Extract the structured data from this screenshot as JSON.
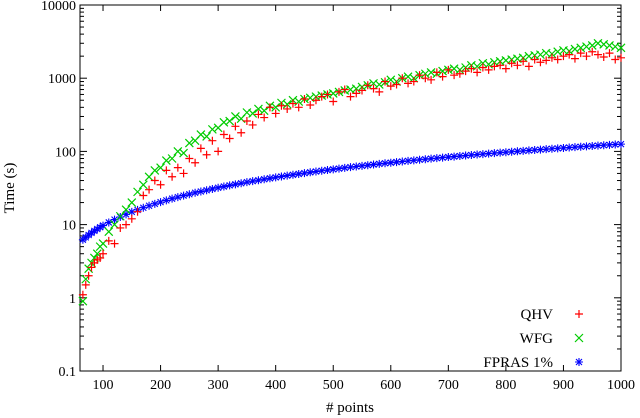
{
  "chart_data": {
    "type": "scatter",
    "xlabel": "# points",
    "ylabel": "Time (s)",
    "xlim": [
      60,
      1000
    ],
    "ylim": [
      0.1,
      10000
    ],
    "yscale": "log",
    "xticks": [
      100,
      200,
      300,
      400,
      500,
      600,
      700,
      800,
      900,
      1000
    ],
    "xtick_labels": [
      "100",
      "200",
      "300",
      "400",
      "500",
      "600",
      "700",
      "800",
      "900",
      "1000"
    ],
    "yticks": [
      0.1,
      1,
      10,
      100,
      1000,
      10000
    ],
    "ytick_labels": [
      "0.1",
      "1",
      "10",
      "100",
      "1000",
      "10000"
    ],
    "grid": false,
    "legend_position": "bottom-right",
    "series": [
      {
        "name": "QHV",
        "marker": "+",
        "color": "#ff0000",
        "x": [
          65,
          70,
          75,
          80,
          85,
          90,
          95,
          100,
          110,
          120,
          130,
          140,
          150,
          160,
          170,
          180,
          190,
          200,
          210,
          220,
          230,
          240,
          250,
          260,
          270,
          280,
          290,
          300,
          310,
          320,
          330,
          340,
          350,
          360,
          370,
          380,
          390,
          400,
          410,
          420,
          430,
          440,
          450,
          460,
          470,
          480,
          490,
          500,
          510,
          520,
          530,
          540,
          550,
          560,
          570,
          580,
          590,
          600,
          610,
          620,
          630,
          640,
          650,
          660,
          670,
          680,
          690,
          700,
          710,
          720,
          730,
          740,
          750,
          760,
          770,
          780,
          790,
          800,
          810,
          820,
          830,
          840,
          850,
          860,
          870,
          880,
          890,
          900,
          910,
          920,
          930,
          940,
          950,
          960,
          970,
          980,
          990,
          1000
        ],
        "y": [
          1.1,
          1.5,
          2.0,
          2.6,
          3.0,
          3.3,
          3.5,
          4.0,
          6.0,
          5.5,
          9.0,
          10.0,
          12.0,
          15.0,
          25.0,
          30.0,
          40.0,
          35.0,
          55.0,
          45.0,
          60.0,
          50.0,
          80.0,
          70.0,
          110.0,
          90.0,
          140.0,
          100.0,
          170.0,
          150.0,
          220.0,
          180.0,
          260.0,
          230.0,
          320.0,
          290.0,
          400.0,
          330.0,
          420.0,
          380.0,
          450.0,
          400.0,
          520.0,
          430.0,
          500.0,
          560.0,
          600.0,
          480.0,
          650.0,
          700.0,
          560.0,
          620.0,
          680.0,
          800.0,
          720.0,
          650.0,
          900.0,
          780.0,
          820.0,
          1000.0,
          850.0,
          900.0,
          1100.0,
          1000.0,
          950.0,
          1200.0,
          1050.0,
          1300.0,
          1100.0,
          1150.0,
          1250.0,
          1350.0,
          1200.0,
          1400.0,
          1300.0,
          1450.0,
          1500.0,
          1350.0,
          1600.0,
          1500.0,
          1700.0,
          1450.0,
          1800.0,
          1650.0,
          1750.0,
          1900.0,
          1800.0,
          2000.0,
          2100.0,
          1850.0,
          2200.0,
          2000.0,
          2300.0,
          2100.0,
          1950.0,
          2200.0,
          1800.0,
          1900.0
        ]
      },
      {
        "name": "WFG",
        "marker": "x",
        "color": "#00cc00",
        "x": [
          65,
          70,
          75,
          80,
          85,
          90,
          95,
          100,
          110,
          120,
          130,
          140,
          150,
          160,
          170,
          180,
          190,
          200,
          210,
          220,
          230,
          240,
          250,
          260,
          270,
          280,
          290,
          300,
          310,
          320,
          330,
          340,
          350,
          360,
          370,
          380,
          390,
          400,
          410,
          420,
          430,
          440,
          450,
          460,
          470,
          480,
          490,
          500,
          510,
          520,
          530,
          540,
          550,
          560,
          570,
          580,
          590,
          600,
          610,
          620,
          630,
          640,
          650,
          660,
          670,
          680,
          690,
          700,
          710,
          720,
          730,
          740,
          750,
          760,
          770,
          780,
          790,
          800,
          810,
          820,
          830,
          840,
          850,
          860,
          870,
          880,
          890,
          900,
          910,
          920,
          930,
          940,
          950,
          960,
          970,
          980,
          990,
          1000
        ],
        "y": [
          0.9,
          1.8,
          2.5,
          3.0,
          3.5,
          4.0,
          5.0,
          5.5,
          8.0,
          10.0,
          13.0,
          16.0,
          20.0,
          28.0,
          35.0,
          45.0,
          55.0,
          60.0,
          75.0,
          80.0,
          100.0,
          95.0,
          130.0,
          140.0,
          170.0,
          160.0,
          200.0,
          210.0,
          250.0,
          260.0,
          300.0,
          280.0,
          340.0,
          330.0,
          380.0,
          360.0,
          420.0,
          400.0,
          460.0,
          440.0,
          500.0,
          480.0,
          520.0,
          540.0,
          560.0,
          580.0,
          600.0,
          620.0,
          650.0,
          680.0,
          700.0,
          720.0,
          760.0,
          800.0,
          850.0,
          820.0,
          880.0,
          950.0,
          900.0,
          1000.0,
          1050.0,
          1000.0,
          1100.0,
          1150.0,
          1200.0,
          1150.0,
          1250.0,
          1300.0,
          1350.0,
          1300.0,
          1400.0,
          1500.0,
          1450.0,
          1600.0,
          1550.0,
          1650.0,
          1700.0,
          1750.0,
          1800.0,
          1850.0,
          1900.0,
          2000.0,
          2050.0,
          2100.0,
          2200.0,
          2150.0,
          2300.0,
          2400.0,
          2350.0,
          2500.0,
          2600.0,
          2700.0,
          2800.0,
          3000.0,
          2900.0,
          2800.0,
          2700.0,
          2600.0
        ]
      },
      {
        "name": "FPRAS 1%",
        "marker": "*",
        "color": "#0000ff",
        "x": [
          65,
          70,
          75,
          80,
          85,
          90,
          95,
          100,
          110,
          120,
          130,
          140,
          150,
          160,
          170,
          180,
          190,
          200,
          210,
          220,
          230,
          240,
          250,
          260,
          270,
          280,
          290,
          300,
          310,
          320,
          330,
          340,
          350,
          360,
          370,
          380,
          390,
          400,
          410,
          420,
          430,
          440,
          450,
          460,
          470,
          480,
          490,
          500,
          510,
          520,
          530,
          540,
          550,
          560,
          570,
          580,
          590,
          600,
          610,
          620,
          630,
          640,
          650,
          660,
          670,
          680,
          690,
          700,
          710,
          720,
          730,
          740,
          750,
          760,
          770,
          780,
          790,
          800,
          810,
          820,
          830,
          840,
          850,
          860,
          870,
          880,
          890,
          900,
          910,
          920,
          930,
          940,
          950,
          960,
          970,
          980,
          990,
          1000
        ],
        "y": [
          6.2,
          6.7,
          7.2,
          7.7,
          8.2,
          8.7,
          9.2,
          9.7,
          10.7,
          11.7,
          12.7,
          13.8,
          14.9,
          15.9,
          17.0,
          18.1,
          19.2,
          20.3,
          21.4,
          22.6,
          23.7,
          24.9,
          26.0,
          27.2,
          28.3,
          29.5,
          30.7,
          31.9,
          33.1,
          34.3,
          35.5,
          36.7,
          38.0,
          39.2,
          40.4,
          41.7,
          42.9,
          44.2,
          45.4,
          46.7,
          47.9,
          49.2,
          50.5,
          51.8,
          53.1,
          54.4,
          55.6,
          56.9,
          58.2,
          59.6,
          60.9,
          62.2,
          63.5,
          64.8,
          66.1,
          67.5,
          68.8,
          70.1,
          71.5,
          72.8,
          74.2,
          75.5,
          76.9,
          78.2,
          79.6,
          80.9,
          82.3,
          83.7,
          85.0,
          86.4,
          87.8,
          89.2,
          90.6,
          91.9,
          93.3,
          94.7,
          96.1,
          97.5,
          98.9,
          100.3,
          101.7,
          103.1,
          104.5,
          105.9,
          107.3,
          108.7,
          110.1,
          111.5,
          112.9,
          114.3,
          115.8,
          117.2,
          118.6,
          120.0,
          121.4,
          122.9,
          124.3,
          125.7
        ]
      }
    ]
  }
}
